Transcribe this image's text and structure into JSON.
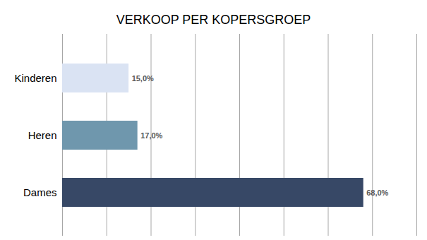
{
  "chart_data": {
    "type": "bar",
    "title": "VERKOOP PER KOPERSGROEP",
    "orientation": "horizontal",
    "categories": [
      "Kinderen",
      "Heren",
      "Dames"
    ],
    "values": [
      15,
      17,
      68
    ],
    "value_labels": [
      "15,0%",
      "17,0%",
      "68,0%"
    ],
    "colors": [
      "#dae3f3",
      "#6f97ad",
      "#374866"
    ],
    "xlim": [
      0,
      80
    ],
    "xticks": [
      0,
      10,
      20,
      30,
      40,
      50,
      60,
      70,
      80
    ],
    "grid": true,
    "data_labels": true,
    "tick_labels": "y"
  }
}
